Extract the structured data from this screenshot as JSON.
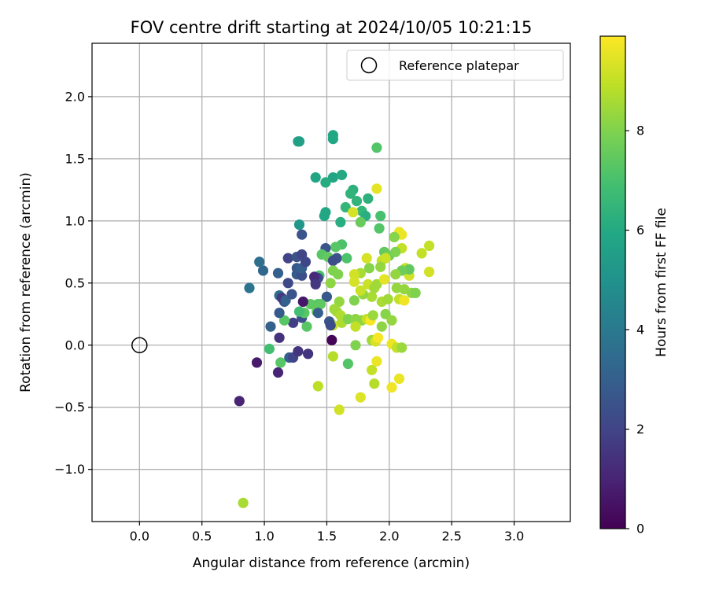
{
  "chart_data": {
    "type": "scatter",
    "title": "FOV centre drift starting at 2024/10/05 10:21:15",
    "xlabel": "Angular distance from reference (arcmin)",
    "ylabel": "Rotation from reference (arcmin)",
    "xlim": [
      -0.38,
      3.45
    ],
    "ylim": [
      -1.42,
      2.43
    ],
    "xticks": [
      "0.0",
      "0.5",
      "1.0",
      "1.5",
      "2.0",
      "2.5",
      "3.0"
    ],
    "xtick_values": [
      0,
      0.5,
      1,
      1.5,
      2,
      2.5,
      3
    ],
    "yticks": [
      "−1.0",
      "−0.5",
      "0.0",
      "0.5",
      "1.0",
      "1.5",
      "2.0"
    ],
    "ytick_values": [
      -1,
      -0.5,
      0,
      0.5,
      1,
      1.5,
      2
    ],
    "grid": true,
    "legend": {
      "position": "top-right",
      "entries": [
        "Reference platepar"
      ]
    },
    "reference": {
      "x": 0.0,
      "y": 0.0
    },
    "colorbar": {
      "label": "Hours from first FF file",
      "colormap": "viridis",
      "range": [
        0,
        9.9
      ],
      "ticks": [
        "0",
        "2",
        "4",
        "6",
        "8"
      ],
      "tick_values": [
        0,
        2,
        4,
        6,
        8
      ]
    },
    "points": [
      {
        "x": 1.28,
        "y": 1.64,
        "h": 5.6
      },
      {
        "x": 1.27,
        "y": 1.64,
        "h": 5.6
      },
      {
        "x": 1.55,
        "y": 1.69,
        "h": 5.9
      },
      {
        "x": 1.55,
        "y": 1.66,
        "h": 5.9
      },
      {
        "x": 1.9,
        "y": 1.59,
        "h": 7.2
      },
      {
        "x": 1.41,
        "y": 1.35,
        "h": 5.8
      },
      {
        "x": 1.55,
        "y": 1.35,
        "h": 5.8
      },
      {
        "x": 1.62,
        "y": 1.37,
        "h": 6.0
      },
      {
        "x": 1.49,
        "y": 1.31,
        "h": 6.1
      },
      {
        "x": 1.71,
        "y": 1.25,
        "h": 6.3
      },
      {
        "x": 1.9,
        "y": 1.26,
        "h": 9.5
      },
      {
        "x": 1.69,
        "y": 1.22,
        "h": 6.4
      },
      {
        "x": 1.74,
        "y": 1.16,
        "h": 6.4
      },
      {
        "x": 1.83,
        "y": 1.18,
        "h": 6.3
      },
      {
        "x": 1.65,
        "y": 1.11,
        "h": 6.5
      },
      {
        "x": 1.78,
        "y": 1.08,
        "h": 6.5
      },
      {
        "x": 1.71,
        "y": 1.07,
        "h": 9.3
      },
      {
        "x": 1.81,
        "y": 1.04,
        "h": 6.2
      },
      {
        "x": 1.49,
        "y": 1.07,
        "h": 5.9
      },
      {
        "x": 1.48,
        "y": 1.04,
        "h": 5.9
      },
      {
        "x": 1.93,
        "y": 1.04,
        "h": 7.0
      },
      {
        "x": 1.61,
        "y": 0.99,
        "h": 6.2
      },
      {
        "x": 1.77,
        "y": 0.99,
        "h": 7.6
      },
      {
        "x": 1.92,
        "y": 0.94,
        "h": 7.2
      },
      {
        "x": 1.28,
        "y": 0.97,
        "h": 5.2
      },
      {
        "x": 1.3,
        "y": 0.89,
        "h": 2.6
      },
      {
        "x": 2.08,
        "y": 0.91,
        "h": 9.6
      },
      {
        "x": 2.1,
        "y": 0.89,
        "h": 9.6
      },
      {
        "x": 2.04,
        "y": 0.87,
        "h": 8.1
      },
      {
        "x": 2.1,
        "y": 0.78,
        "h": 9.0
      },
      {
        "x": 2.32,
        "y": 0.8,
        "h": 9.0
      },
      {
        "x": 2.26,
        "y": 0.74,
        "h": 9.0
      },
      {
        "x": 1.62,
        "y": 0.81,
        "h": 7.1
      },
      {
        "x": 1.57,
        "y": 0.79,
        "h": 7.3
      },
      {
        "x": 1.49,
        "y": 0.78,
        "h": 2.6
      },
      {
        "x": 1.46,
        "y": 0.73,
        "h": 7.3
      },
      {
        "x": 1.51,
        "y": 0.71,
        "h": 7.5
      },
      {
        "x": 1.58,
        "y": 0.7,
        "h": 2.5
      },
      {
        "x": 1.55,
        "y": 0.68,
        "h": 2.3
      },
      {
        "x": 1.66,
        "y": 0.7,
        "h": 7.1
      },
      {
        "x": 1.96,
        "y": 0.75,
        "h": 7.5
      },
      {
        "x": 2.0,
        "y": 0.72,
        "h": 7.7
      },
      {
        "x": 2.05,
        "y": 0.75,
        "h": 8.0
      },
      {
        "x": 1.82,
        "y": 0.7,
        "h": 9.3
      },
      {
        "x": 1.94,
        "y": 0.68,
        "h": 9.0
      },
      {
        "x": 1.97,
        "y": 0.7,
        "h": 9.1
      },
      {
        "x": 2.16,
        "y": 0.56,
        "h": 9.2
      },
      {
        "x": 2.32,
        "y": 0.59,
        "h": 9.2
      },
      {
        "x": 2.13,
        "y": 0.62,
        "h": 9.0
      },
      {
        "x": 2.16,
        "y": 0.61,
        "h": 7.5
      },
      {
        "x": 2.1,
        "y": 0.6,
        "h": 7.7
      },
      {
        "x": 2.05,
        "y": 0.57,
        "h": 8.3
      },
      {
        "x": 1.93,
        "y": 0.63,
        "h": 8.3
      },
      {
        "x": 1.84,
        "y": 0.62,
        "h": 8.1
      },
      {
        "x": 1.77,
        "y": 0.58,
        "h": 8.6
      },
      {
        "x": 1.72,
        "y": 0.57,
        "h": 9.2
      },
      {
        "x": 1.72,
        "y": 0.51,
        "h": 9.3
      },
      {
        "x": 1.55,
        "y": 0.6,
        "h": 8.0
      },
      {
        "x": 1.59,
        "y": 0.57,
        "h": 8.0
      },
      {
        "x": 1.44,
        "y": 0.56,
        "h": 7.0
      },
      {
        "x": 1.43,
        "y": 0.54,
        "h": 2.1
      },
      {
        "x": 1.41,
        "y": 0.52,
        "h": 2.2
      },
      {
        "x": 1.4,
        "y": 0.55,
        "h": 1.2
      },
      {
        "x": 1.53,
        "y": 0.5,
        "h": 8.2
      },
      {
        "x": 1.83,
        "y": 0.49,
        "h": 9.1
      },
      {
        "x": 1.88,
        "y": 0.46,
        "h": 8.5
      },
      {
        "x": 1.9,
        "y": 0.49,
        "h": 8.5
      },
      {
        "x": 1.96,
        "y": 0.53,
        "h": 9.5
      },
      {
        "x": 2.06,
        "y": 0.46,
        "h": 8.3
      },
      {
        "x": 2.12,
        "y": 0.45,
        "h": 8.3
      },
      {
        "x": 2.18,
        "y": 0.42,
        "h": 8.2
      },
      {
        "x": 2.21,
        "y": 0.42,
        "h": 8.0
      },
      {
        "x": 2.08,
        "y": 0.37,
        "h": 9.0
      },
      {
        "x": 2.12,
        "y": 0.36,
        "h": 9.7
      },
      {
        "x": 1.94,
        "y": 0.35,
        "h": 8.6
      },
      {
        "x": 1.99,
        "y": 0.37,
        "h": 8.5
      },
      {
        "x": 1.86,
        "y": 0.39,
        "h": 8.6
      },
      {
        "x": 1.79,
        "y": 0.41,
        "h": 8.3
      },
      {
        "x": 1.77,
        "y": 0.44,
        "h": 9.1
      },
      {
        "x": 1.72,
        "y": 0.36,
        "h": 8.0
      },
      {
        "x": 1.6,
        "y": 0.35,
        "h": 8.3
      },
      {
        "x": 1.5,
        "y": 0.39,
        "h": 2.7
      },
      {
        "x": 1.43,
        "y": 0.33,
        "h": 7.2
      },
      {
        "x": 1.45,
        "y": 0.33,
        "h": 7.4
      },
      {
        "x": 1.37,
        "y": 0.33,
        "h": 7.4
      },
      {
        "x": 1.42,
        "y": 0.27,
        "h": 7.6
      },
      {
        "x": 1.43,
        "y": 0.26,
        "h": 3.0
      },
      {
        "x": 1.56,
        "y": 0.29,
        "h": 8.5
      },
      {
        "x": 1.58,
        "y": 0.27,
        "h": 8.5
      },
      {
        "x": 1.61,
        "y": 0.24,
        "h": 8.7
      },
      {
        "x": 1.62,
        "y": 0.18,
        "h": 8.7
      },
      {
        "x": 1.67,
        "y": 0.21,
        "h": 8.0
      },
      {
        "x": 1.73,
        "y": 0.21,
        "h": 8.2
      },
      {
        "x": 1.78,
        "y": 0.2,
        "h": 8.2
      },
      {
        "x": 1.82,
        "y": 0.21,
        "h": 9.0
      },
      {
        "x": 1.85,
        "y": 0.2,
        "h": 9.8
      },
      {
        "x": 1.87,
        "y": 0.24,
        "h": 8.4
      },
      {
        "x": 1.94,
        "y": 0.15,
        "h": 8.2
      },
      {
        "x": 1.97,
        "y": 0.25,
        "h": 8.1
      },
      {
        "x": 2.02,
        "y": 0.2,
        "h": 8.3
      },
      {
        "x": 1.73,
        "y": 0.15,
        "h": 9.0
      },
      {
        "x": 1.55,
        "y": 0.16,
        "h": 9.0
      },
      {
        "x": 1.52,
        "y": 0.19,
        "h": 2.7
      },
      {
        "x": 1.53,
        "y": 0.16,
        "h": 2.3
      },
      {
        "x": 1.34,
        "y": 0.15,
        "h": 7.3
      },
      {
        "x": 1.3,
        "y": 0.22,
        "h": 2.4
      },
      {
        "x": 1.32,
        "y": 0.26,
        "h": 7.3
      },
      {
        "x": 1.28,
        "y": 0.27,
        "h": 6.9
      },
      {
        "x": 1.23,
        "y": 0.18,
        "h": 1.8
      },
      {
        "x": 1.16,
        "y": 0.2,
        "h": 7.3
      },
      {
        "x": 1.12,
        "y": 0.26,
        "h": 2.8
      },
      {
        "x": 1.16,
        "y": 0.35,
        "h": 2.6
      },
      {
        "x": 1.12,
        "y": 0.4,
        "h": 3.5
      },
      {
        "x": 1.14,
        "y": 0.38,
        "h": 1.6
      },
      {
        "x": 1.17,
        "y": 0.36,
        "h": 3.1
      },
      {
        "x": 1.22,
        "y": 0.41,
        "h": 2.6
      },
      {
        "x": 1.19,
        "y": 0.5,
        "h": 2.2
      },
      {
        "x": 1.26,
        "y": 0.57,
        "h": 2.8
      },
      {
        "x": 1.3,
        "y": 0.56,
        "h": 2.4
      },
      {
        "x": 1.26,
        "y": 0.62,
        "h": 2.8
      },
      {
        "x": 1.3,
        "y": 0.62,
        "h": 3.0
      },
      {
        "x": 1.19,
        "y": 0.7,
        "h": 2.0
      },
      {
        "x": 1.26,
        "y": 0.71,
        "h": 2.5
      },
      {
        "x": 1.3,
        "y": 0.73,
        "h": 2.0
      },
      {
        "x": 1.33,
        "y": 0.67,
        "h": 2.1
      },
      {
        "x": 1.11,
        "y": 0.58,
        "h": 3.0
      },
      {
        "x": 0.99,
        "y": 0.6,
        "h": 3.3
      },
      {
        "x": 0.96,
        "y": 0.67,
        "h": 3.6
      },
      {
        "x": 0.88,
        "y": 0.46,
        "h": 3.8
      },
      {
        "x": 1.31,
        "y": 0.35,
        "h": 0.6
      },
      {
        "x": 1.41,
        "y": 0.49,
        "h": 1.6
      },
      {
        "x": 1.05,
        "y": 0.15,
        "h": 3.1
      },
      {
        "x": 1.12,
        "y": 0.06,
        "h": 1.4
      },
      {
        "x": 1.04,
        "y": -0.03,
        "h": 6.9
      },
      {
        "x": 1.13,
        "y": -0.14,
        "h": 7.3
      },
      {
        "x": 1.2,
        "y": -0.1,
        "h": 3.0
      },
      {
        "x": 1.23,
        "y": -0.1,
        "h": 2.0
      },
      {
        "x": 1.27,
        "y": -0.05,
        "h": 1.5
      },
      {
        "x": 1.35,
        "y": -0.07,
        "h": 1.5
      },
      {
        "x": 0.94,
        "y": -0.14,
        "h": 0.7
      },
      {
        "x": 1.11,
        "y": -0.22,
        "h": 1.0
      },
      {
        "x": 0.8,
        "y": -0.45,
        "h": 1.0
      },
      {
        "x": 0.83,
        "y": -1.27,
        "h": 8.6
      },
      {
        "x": 1.43,
        "y": -0.33,
        "h": 8.9
      },
      {
        "x": 1.54,
        "y": 0.04,
        "h": 0.1
      },
      {
        "x": 1.55,
        "y": -0.09,
        "h": 8.8
      },
      {
        "x": 1.6,
        "y": -0.52,
        "h": 9.2
      },
      {
        "x": 1.67,
        "y": -0.15,
        "h": 7.2
      },
      {
        "x": 1.73,
        "y": 0.0,
        "h": 8.0
      },
      {
        "x": 1.86,
        "y": 0.04,
        "h": 8.5
      },
      {
        "x": 1.89,
        "y": 0.03,
        "h": 9.3
      },
      {
        "x": 1.91,
        "y": 0.06,
        "h": 9.8
      },
      {
        "x": 1.9,
        "y": -0.13,
        "h": 9.6
      },
      {
        "x": 1.86,
        "y": -0.2,
        "h": 9.0
      },
      {
        "x": 1.88,
        "y": -0.31,
        "h": 8.8
      },
      {
        "x": 1.77,
        "y": -0.42,
        "h": 9.4
      },
      {
        "x": 2.02,
        "y": 0.01,
        "h": 9.6
      },
      {
        "x": 2.06,
        "y": -0.02,
        "h": 9.0
      },
      {
        "x": 2.1,
        "y": -0.02,
        "h": 8.4
      },
      {
        "x": 2.02,
        "y": -0.34,
        "h": 9.7
      },
      {
        "x": 2.08,
        "y": -0.27,
        "h": 9.6
      }
    ]
  }
}
